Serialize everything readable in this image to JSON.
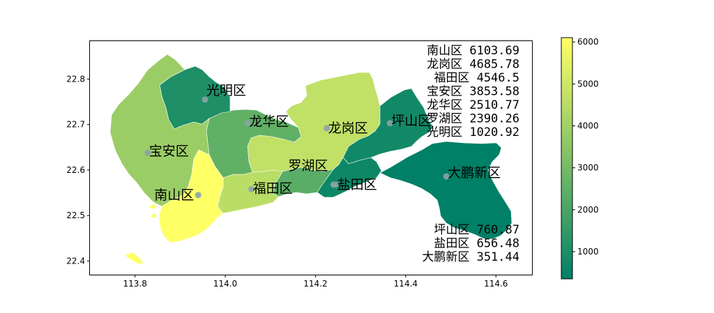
{
  "chart_data": {
    "type": "choropleth",
    "title": "",
    "xlabel": "",
    "ylabel": "",
    "xlim": [
      113.7,
      114.68
    ],
    "ylim": [
      22.37,
      22.885
    ],
    "xticks": [
      "113.8",
      "114.0",
      "114.2",
      "114.4",
      "114.6"
    ],
    "yticks": [
      "22.4",
      "22.5",
      "22.6",
      "22.7",
      "22.8"
    ],
    "regions": [
      {
        "name": "南山区",
        "value": 6103.69,
        "label_lon": 113.94,
        "label_lat": 22.545
      },
      {
        "name": "龙岗区",
        "value": 4685.78,
        "label_lon": 114.225,
        "label_lat": 22.692
      },
      {
        "name": "福田区",
        "value": 4546.5,
        "label_lon": 114.058,
        "label_lat": 22.558
      },
      {
        "name": "宝安区",
        "value": 3853.58,
        "label_lon": 113.828,
        "label_lat": 22.638
      },
      {
        "name": "龙华区",
        "value": 2510.77,
        "label_lon": 114.05,
        "label_lat": 22.703
      },
      {
        "name": "罗湖区",
        "value": 2390.26,
        "label_lon": 114.24,
        "label_lat": 22.568
      },
      {
        "name": "光明区",
        "value": 1020.92,
        "label_lon": 113.955,
        "label_lat": 22.755
      },
      {
        "name": "坪山区",
        "value": 760.87,
        "label_lon": 114.365,
        "label_lat": 22.703
      },
      {
        "name": "盐田区",
        "value": 656.48,
        "label_lon": 114.245,
        "label_lat": 22.568
      },
      {
        "name": "大鹏新区",
        "value": 351.44,
        "label_lon": 114.49,
        "label_lat": 22.586
      }
    ],
    "value_list_top": [
      "南山区 6103.69",
      "龙岗区 4685.78",
      "福田区 4546.5",
      "宝安区 3853.58",
      "龙华区 2510.77",
      "罗湖区 2390.26",
      "光明区 1020.92"
    ],
    "value_list_bottom": [
      "坪山区 760.87",
      "盐田区 656.48",
      "大鹏新区 351.44"
    ],
    "colorbar": {
      "min": 351.44,
      "max": 6103.69,
      "ticks": [
        "1000",
        "2000",
        "3000",
        "4000",
        "5000",
        "6000"
      ],
      "colormap": "summer",
      "colors": [
        "#008066",
        "#ffff66"
      ]
    },
    "grid": false,
    "legend": "none"
  }
}
